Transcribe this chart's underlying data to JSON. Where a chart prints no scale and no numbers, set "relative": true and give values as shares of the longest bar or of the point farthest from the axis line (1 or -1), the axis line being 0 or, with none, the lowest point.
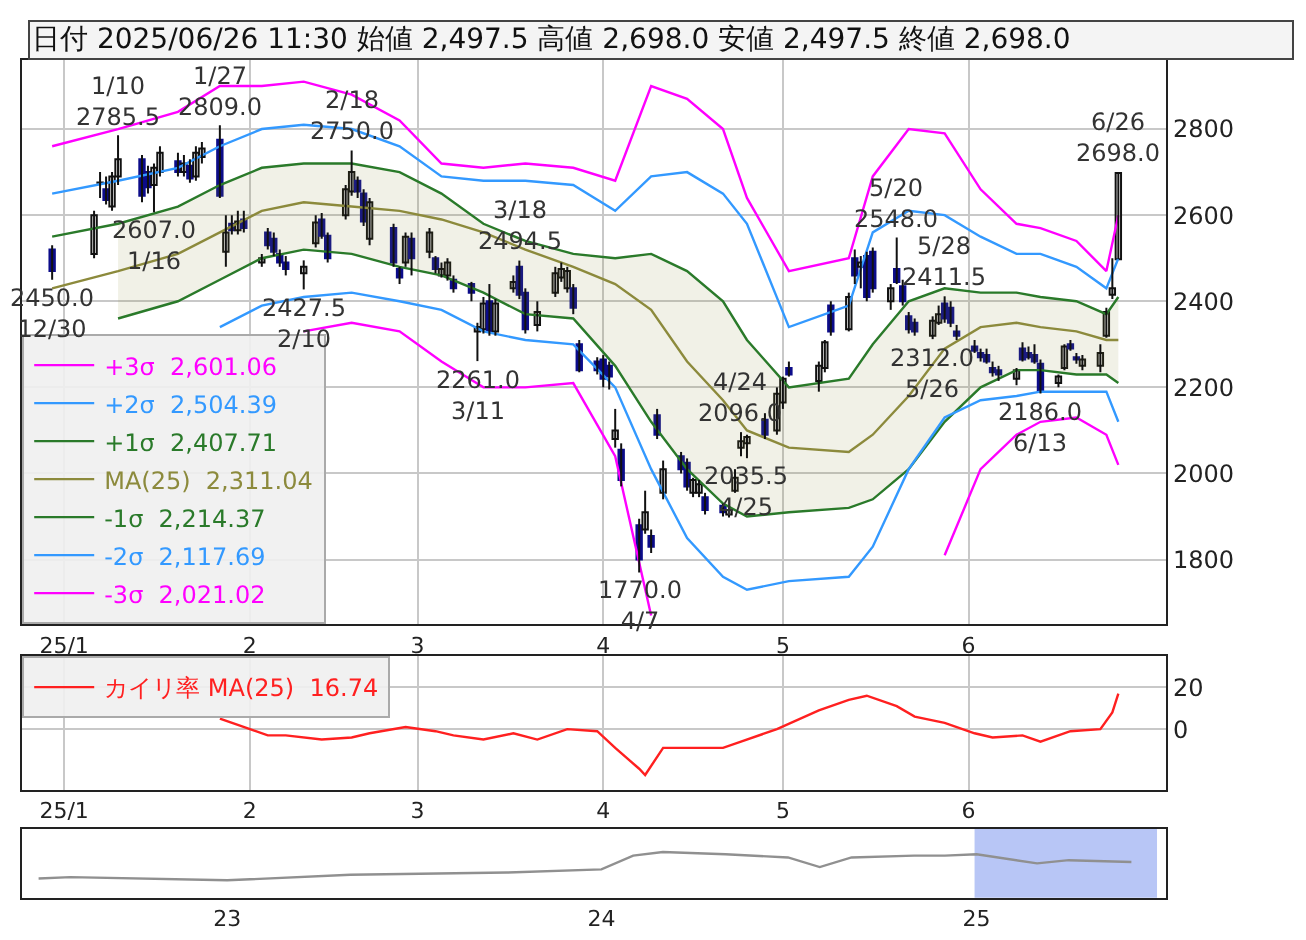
{
  "chart_data": [
    {
      "type": "candlestick",
      "title": "日付 2025/06/26 11:30 始値 2,497.5 高値 2,698.0 安値 2,497.5 終値 2,698.0",
      "colors": [
        "#0c0c8a",
        "#ffffff",
        "#ffffff",
        "#0c0c8a",
        "#ffffff",
        "#ffffff",
        "#0c0c8a",
        "#0c0c8a",
        "#ffffff",
        "#ffffff",
        "#0c0c8a",
        "#ffffff",
        "#0c0c8a",
        "#ffffff",
        "#ffffff",
        "#0c0c8a",
        "#ffffff",
        "#0c0c8a",
        "#ffffff",
        "#0c0c8a",
        "#ffffff",
        "#0c0c8a",
        "#0c0c8a",
        "#0c0c8a",
        "#0c0c8a",
        "#ffffff",
        "#ffffff",
        "#0c0c8a",
        "#0c0c8a",
        "#ffffff",
        "#ffffff",
        "#0c0c8a",
        "#0c0c8a",
        "#ffffff",
        "#0c0c8a",
        "#0c0c8a",
        "#ffffff",
        "#0c0c8a",
        "#ffffff",
        "#0c0c8a",
        "#ffffff",
        "#ffffff",
        "#0c0c8a",
        "#0c0c8a",
        "#ffffff",
        "#ffffff",
        "#0c0c8a",
        "#ffffff",
        "#ffffff",
        "#0c0c8a",
        "#0c0c8a",
        "#ffffff",
        "#ffffff",
        "#ffffff",
        "#ffffff",
        "#0c0c8a",
        "#0c0c8a",
        "#0c0c8a",
        "#0c0c8a",
        "#0c0c8a",
        "#ffffff",
        "#0c0c8a",
        "#0c0c8a",
        "#ffffff",
        "#0c0c8a",
        "#0c0c8a",
        "#ffffff",
        "#0c0c8a",
        "#0c0c8a",
        "#ffffff",
        "#ffffff",
        "#0c0c8a",
        "#0c0c8a",
        "#ffffff",
        "#ffffff",
        "#ffffff",
        "#ffffff",
        "#0c0c8a",
        "#ffffff",
        "#ffffff",
        "#0c0c8a",
        "#ffffff",
        "#ffffff",
        "#0c0c8a",
        "#ffffff",
        "#0c0c8a",
        "#ffffff",
        "#0c0c8a",
        "#0c0c8a",
        "#ffffff",
        "#0c0c8a",
        "#0c0c8a",
        "#0c0c8a",
        "#0c0c8a",
        "#ffffff",
        "#ffffff",
        "#0c0c8a",
        "#0c0c8a",
        "#0c0c8a",
        "#0c0c8a",
        "#0c0c8a",
        "#0c0c8a",
        "#0c0c8a",
        "#0c0c8a",
        "#ffffff",
        "#0c0c8a",
        "#0c0c8a",
        "#0c0c8a",
        "#0c0c8a",
        "#ffffff",
        "#ffffff",
        "#0c0c8a",
        "#0c0c8a",
        "#ffffff",
        "#ffffff",
        "#ffffff",
        "#ffffff",
        "#ffffff"
      ],
      "x": [
        "2024-12-30",
        "2025-01-06",
        "2025-01-07",
        "2025-01-08",
        "2025-01-09",
        "2025-01-10",
        "2025-01-14",
        "2025-01-15",
        "2025-01-16",
        "2025-01-17",
        "2025-01-20",
        "2025-01-21",
        "2025-01-22",
        "2025-01-23",
        "2025-01-24",
        "2025-01-27",
        "2025-01-28",
        "2025-01-29",
        "2025-01-30",
        "2025-01-31",
        "2025-02-03",
        "2025-02-04",
        "2025-02-05",
        "2025-02-06",
        "2025-02-07",
        "2025-02-10",
        "2025-02-12",
        "2025-02-13",
        "2025-02-14",
        "2025-02-17",
        "2025-02-18",
        "2025-02-19",
        "2025-02-20",
        "2025-02-21",
        "2025-02-25",
        "2025-02-26",
        "2025-02-27",
        "2025-02-28",
        "2025-03-03",
        "2025-03-04",
        "2025-03-05",
        "2025-03-06",
        "2025-03-07",
        "2025-03-10",
        "2025-03-11",
        "2025-03-12",
        "2025-03-13",
        "2025-03-14",
        "2025-03-17",
        "2025-03-18",
        "2025-03-19",
        "2025-03-21",
        "2025-03-24",
        "2025-03-25",
        "2025-03-26",
        "2025-03-27",
        "2025-03-28",
        "2025-03-31",
        "2025-04-01",
        "2025-04-02",
        "2025-04-03",
        "2025-04-04",
        "2025-04-07",
        "2025-04-08",
        "2025-04-09",
        "2025-04-10",
        "2025-04-11",
        "2025-04-14",
        "2025-04-15",
        "2025-04-16",
        "2025-04-17",
        "2025-04-18",
        "2025-04-21",
        "2025-04-22",
        "2025-04-23",
        "2025-04-24",
        "2025-04-25",
        "2025-04-28",
        "2025-04-30",
        "2025-05-01",
        "2025-05-02",
        "2025-05-07",
        "2025-05-08",
        "2025-05-09",
        "2025-05-12",
        "2025-05-13",
        "2025-05-14",
        "2025-05-15",
        "2025-05-16",
        "2025-05-19",
        "2025-05-20",
        "2025-05-21",
        "2025-05-22",
        "2025-05-23",
        "2025-05-26",
        "2025-05-27",
        "2025-05-28",
        "2025-05-29",
        "2025-05-30",
        "2025-06-02",
        "2025-06-03",
        "2025-06-04",
        "2025-06-05",
        "2025-06-06",
        "2025-06-09",
        "2025-06-10",
        "2025-06-11",
        "2025-06-12",
        "2025-06-13",
        "2025-06-16",
        "2025-06-17",
        "2025-06-18",
        "2025-06-19",
        "2025-06-20",
        "2025-06-23",
        "2025-06-24",
        "2025-06-25",
        "2025-06-26"
      ],
      "ohlc": [
        [
          2520,
          2530,
          2450,
          2470
        ],
        [
          2510,
          2610,
          2500,
          2600
        ],
        [
          2675,
          2700,
          2640,
          2676
        ],
        [
          2660,
          2690,
          2625,
          2635
        ],
        [
          2620,
          2700,
          2610,
          2690
        ],
        [
          2690,
          2785.5,
          2670,
          2730
        ],
        [
          2730,
          2740,
          2630,
          2645
        ],
        [
          2700,
          2715,
          2650,
          2665
        ],
        [
          2670,
          2720,
          2607,
          2710
        ],
        [
          2700,
          2760,
          2690,
          2745
        ],
        [
          2725,
          2745,
          2690,
          2700
        ],
        [
          2700,
          2740,
          2690,
          2720
        ],
        [
          2715,
          2730,
          2675,
          2685
        ],
        [
          2690,
          2760,
          2680,
          2745
        ],
        [
          2735,
          2770,
          2720,
          2755
        ],
        [
          2775,
          2809,
          2640,
          2645
        ],
        [
          2515,
          2600,
          2480,
          2560
        ],
        [
          2580,
          2600,
          2555,
          2565
        ],
        [
          2565,
          2610,
          2555,
          2585
        ],
        [
          2590,
          2610,
          2560,
          2570
        ],
        [
          2490,
          2510,
          2480,
          2500
        ],
        [
          2560,
          2570,
          2520,
          2530
        ],
        [
          2545,
          2560,
          2505,
          2515
        ],
        [
          2510,
          2520,
          2480,
          2490
        ],
        [
          2490,
          2505,
          2460,
          2475
        ],
        [
          2465,
          2495,
          2427.5,
          2480
        ],
        [
          2535,
          2600,
          2525,
          2583
        ],
        [
          2590,
          2605,
          2545,
          2552
        ],
        [
          2552,
          2560,
          2490,
          2500
        ],
        [
          2600,
          2670,
          2590,
          2660
        ],
        [
          2655,
          2750,
          2645,
          2700
        ],
        [
          2680,
          2690,
          2640,
          2655
        ],
        [
          2650,
          2660,
          2575,
          2585
        ],
        [
          2545,
          2640,
          2530,
          2630
        ],
        [
          2570,
          2580,
          2480,
          2490
        ],
        [
          2475,
          2480,
          2440,
          2455
        ],
        [
          2490,
          2560,
          2480,
          2550
        ],
        [
          2545,
          2560,
          2460,
          2500
        ],
        [
          2515,
          2570,
          2500,
          2560
        ],
        [
          2500,
          2505,
          2465,
          2475
        ],
        [
          2460,
          2490,
          2455,
          2475
        ],
        [
          2460,
          2500,
          2448,
          2490
        ],
        [
          2450,
          2460,
          2420,
          2430
        ],
        [
          2440,
          2445,
          2400,
          2420
        ],
        [
          2330,
          2350,
          2261,
          2340
        ],
        [
          2335,
          2410,
          2325,
          2395
        ],
        [
          2400,
          2440,
          2320,
          2330
        ],
        [
          2330,
          2405,
          2320,
          2395
        ],
        [
          2430,
          2460,
          2420,
          2445
        ],
        [
          2480,
          2494.5,
          2405,
          2415
        ],
        [
          2420,
          2430,
          2325,
          2335
        ],
        [
          2345,
          2400,
          2330,
          2375
        ],
        [
          2420,
          2480,
          2410,
          2465
        ],
        [
          2455,
          2490,
          2445,
          2475
        ],
        [
          2430,
          2480,
          2420,
          2470
        ],
        [
          2430,
          2440,
          2370,
          2385
        ],
        [
          2300,
          2310,
          2235,
          2240
        ],
        [
          2260,
          2270,
          2230,
          2240
        ],
        [
          2265,
          2275,
          2200,
          2220
        ],
        [
          2250,
          2260,
          2195,
          2225
        ],
        [
          2080,
          2150,
          2060,
          2100
        ],
        [
          2055,
          2070,
          1970,
          1985
        ],
        [
          1880,
          1895,
          1770,
          1800
        ],
        [
          1870,
          1960,
          1860,
          1910
        ],
        [
          1855,
          1870,
          1815,
          1830
        ],
        [
          2135,
          2150,
          2080,
          2090
        ],
        [
          1955,
          2030,
          1940,
          2010
        ],
        [
          2040,
          2050,
          2000,
          2010
        ],
        [
          2025,
          2035,
          1960,
          1970
        ],
        [
          1955,
          1990,
          1945,
          1985
        ],
        [
          1955,
          1985,
          1945,
          1975
        ],
        [
          1945,
          1955,
          1905,
          1915
        ],
        [
          1925,
          1930,
          1900,
          1910
        ],
        [
          1905,
          1920,
          1898,
          1915
        ],
        [
          1960,
          2010,
          1955,
          1990
        ],
        [
          2060,
          2096,
          2040,
          2075
        ],
        [
          2070,
          2090,
          2035.5,
          2085
        ],
        [
          2125,
          2140,
          2080,
          2090
        ],
        [
          2100,
          2200,
          2090,
          2185
        ],
        [
          2165,
          2225,
          2150,
          2220
        ],
        [
          2245,
          2260,
          2225,
          2230
        ],
        [
          2215,
          2260,
          2190,
          2250
        ],
        [
          2245,
          2310,
          2235,
          2305
        ],
        [
          2390,
          2400,
          2320,
          2330
        ],
        [
          2335,
          2420,
          2330,
          2410
        ],
        [
          2500,
          2520,
          2440,
          2460
        ],
        [
          2480,
          2505,
          2430,
          2490
        ],
        [
          2505,
          2515,
          2400,
          2410
        ],
        [
          2515,
          2525,
          2420,
          2430
        ],
        [
          2400,
          2440,
          2380,
          2430
        ],
        [
          2475,
          2548,
          2440,
          2445
        ],
        [
          2435,
          2450,
          2390,
          2400
        ],
        [
          2365,
          2375,
          2325,
          2335
        ],
        [
          2350,
          2360,
          2320,
          2330
        ],
        [
          2320,
          2365,
          2312,
          2355
        ],
        [
          2350,
          2390,
          2345,
          2370
        ],
        [
          2395,
          2411.5,
          2350,
          2360
        ],
        [
          2385,
          2400,
          2340,
          2350
        ],
        [
          2330,
          2345,
          2310,
          2320
        ],
        [
          2295,
          2310,
          2280,
          2285
        ],
        [
          2280,
          2290,
          2260,
          2270
        ],
        [
          2275,
          2290,
          2255,
          2260
        ],
        [
          2245,
          2260,
          2225,
          2235
        ],
        [
          2240,
          2250,
          2215,
          2230
        ],
        [
          2220,
          2245,
          2205,
          2240
        ],
        [
          2290,
          2305,
          2260,
          2265
        ],
        [
          2280,
          2295,
          2265,
          2270
        ],
        [
          2275,
          2300,
          2255,
          2260
        ],
        [
          2255,
          2265,
          2186,
          2190
        ],
        [
          2210,
          2230,
          2200,
          2225
        ],
        [
          2245,
          2300,
          2240,
          2295
        ],
        [
          2300,
          2310,
          2285,
          2290
        ],
        [
          2270,
          2280,
          2255,
          2265
        ],
        [
          2250,
          2275,
          2240,
          2265
        ],
        [
          2250,
          2300,
          2235,
          2280
        ],
        [
          2320,
          2385,
          2315,
          2375
        ],
        [
          2415,
          2500,
          2405,
          2430
        ],
        [
          2497.5,
          2698,
          2497.5,
          2698
        ]
      ],
      "series": [
        {
          "type": "line",
          "name": "+3σ  2,601.06",
          "color": "#ff00ff",
          "x": [
            "2024-12-30",
            "2025-01-10",
            "2025-01-20",
            "2025-01-27",
            "2025-02-03",
            "2025-02-10",
            "2025-02-18",
            "2025-02-26",
            "2025-03-05",
            "2025-03-12",
            "2025-03-19",
            "2025-03-27",
            "2025-04-03",
            "2025-04-09",
            "2025-04-15",
            "2025-04-21",
            "2025-04-25",
            "2025-05-02",
            "2025-05-12",
            "2025-05-16",
            "2025-05-22",
            "2025-05-28",
            "2025-06-03",
            "2025-06-09",
            "2025-06-13",
            "2025-06-19",
            "2025-06-24",
            "2025-06-26"
          ],
          "values": [
            2760,
            2800,
            2840,
            2900,
            2900,
            2910,
            2880,
            2820,
            2720,
            2710,
            2720,
            2710,
            2680,
            2900,
            2870,
            2800,
            2640,
            2470,
            2500,
            2690,
            2800,
            2790,
            2660,
            2580,
            2570,
            2540,
            2470,
            2600
          ]
        },
        {
          "type": "line",
          "name": "+2σ  2,504.39",
          "color": "#3399ff",
          "x": [
            "2024-12-30",
            "2025-01-10",
            "2025-01-20",
            "2025-01-27",
            "2025-02-03",
            "2025-02-10",
            "2025-02-18",
            "2025-02-26",
            "2025-03-05",
            "2025-03-12",
            "2025-03-19",
            "2025-03-27",
            "2025-04-03",
            "2025-04-09",
            "2025-04-15",
            "2025-04-21",
            "2025-04-25",
            "2025-05-02",
            "2025-05-12",
            "2025-05-16",
            "2025-05-22",
            "2025-05-28",
            "2025-06-03",
            "2025-06-09",
            "2025-06-13",
            "2025-06-19",
            "2025-06-24",
            "2025-06-26"
          ],
          "values": [
            2650,
            2680,
            2710,
            2760,
            2800,
            2810,
            2800,
            2760,
            2690,
            2680,
            2680,
            2670,
            2610,
            2690,
            2700,
            2650,
            2580,
            2340,
            2390,
            2560,
            2610,
            2600,
            2550,
            2510,
            2510,
            2480,
            2430,
            2500
          ]
        },
        {
          "type": "line",
          "name": "+1σ  2,407.71",
          "color": "#2a7a2a",
          "x": [
            "2024-12-30",
            "2025-01-10",
            "2025-01-20",
            "2025-01-27",
            "2025-02-03",
            "2025-02-10",
            "2025-02-18",
            "2025-02-26",
            "2025-03-05",
            "2025-03-12",
            "2025-03-19",
            "2025-03-27",
            "2025-04-03",
            "2025-04-09",
            "2025-04-15",
            "2025-04-21",
            "2025-04-25",
            "2025-05-02",
            "2025-05-12",
            "2025-05-16",
            "2025-05-22",
            "2025-05-28",
            "2025-06-03",
            "2025-06-09",
            "2025-06-13",
            "2025-06-19",
            "2025-06-24",
            "2025-06-26"
          ],
          "values": [
            2550,
            2580,
            2620,
            2670,
            2710,
            2720,
            2720,
            2700,
            2650,
            2580,
            2540,
            2510,
            2500,
            2510,
            2470,
            2400,
            2310,
            2200,
            2220,
            2300,
            2400,
            2430,
            2420,
            2420,
            2410,
            2400,
            2370,
            2410
          ]
        },
        {
          "type": "line",
          "name": "MA(25)  2,311.04",
          "color": "#8c8a3c",
          "x": [
            "2024-12-30",
            "2025-01-10",
            "2025-01-20",
            "2025-01-27",
            "2025-02-03",
            "2025-02-10",
            "2025-02-18",
            "2025-02-26",
            "2025-03-05",
            "2025-03-12",
            "2025-03-19",
            "2025-03-27",
            "2025-04-03",
            "2025-04-09",
            "2025-04-15",
            "2025-04-21",
            "2025-04-25",
            "2025-05-02",
            "2025-05-12",
            "2025-05-16",
            "2025-05-22",
            "2025-05-28",
            "2025-06-03",
            "2025-06-09",
            "2025-06-13",
            "2025-06-19",
            "2025-06-24",
            "2025-06-26"
          ],
          "values": [
            2430,
            2470,
            2510,
            2560,
            2610,
            2630,
            2620,
            2610,
            2590,
            2560,
            2520,
            2480,
            2440,
            2380,
            2260,
            2170,
            2100,
            2060,
            2050,
            2090,
            2180,
            2290,
            2340,
            2350,
            2340,
            2330,
            2310,
            2310
          ],
          "upper": [
            null,
            2580,
            2620,
            2670,
            2710,
            2720,
            2720,
            2700,
            2650,
            2580,
            2540,
            2510,
            2500,
            2510,
            2470,
            2400,
            2310,
            2200,
            2220,
            2300,
            2400,
            2430,
            2420,
            2420,
            2410,
            2400,
            2370,
            2410
          ],
          "lower": [
            null,
            2360,
            2400,
            2450,
            2500,
            2520,
            2510,
            2480,
            2460,
            2420,
            2370,
            2360,
            2250,
            2120,
            2010,
            1930,
            1900,
            1910,
            1920,
            1940,
            2010,
            2120,
            2200,
            2240,
            2240,
            2230,
            2230,
            2210
          ]
        },
        {
          "type": "line",
          "name": "-1σ  2,214.37",
          "color": "#2a7a2a",
          "x": [
            "2025-01-10",
            "2025-01-20",
            "2025-01-27",
            "2025-02-03",
            "2025-02-10",
            "2025-02-18",
            "2025-02-26",
            "2025-03-05",
            "2025-03-12",
            "2025-03-19",
            "2025-03-27",
            "2025-04-03",
            "2025-04-09",
            "2025-04-15",
            "2025-04-21",
            "2025-04-25",
            "2025-05-02",
            "2025-05-12",
            "2025-05-16",
            "2025-05-22",
            "2025-05-28",
            "2025-06-03",
            "2025-06-09",
            "2025-06-13",
            "2025-06-19",
            "2025-06-24",
            "2025-06-26"
          ],
          "values": [
            2360,
            2400,
            2450,
            2500,
            2520,
            2510,
            2480,
            2460,
            2420,
            2370,
            2360,
            2250,
            2120,
            2010,
            1930,
            1900,
            1910,
            1920,
            1940,
            2010,
            2120,
            2200,
            2240,
            2240,
            2230,
            2230,
            2210
          ]
        },
        {
          "type": "line",
          "name": "-2σ  2,117.69",
          "color": "#3399ff",
          "x": [
            "2025-01-27",
            "2025-02-03",
            "2025-02-10",
            "2025-02-18",
            "2025-02-26",
            "2025-03-05",
            "2025-03-12",
            "2025-03-19",
            "2025-03-27",
            "2025-04-03",
            "2025-04-09",
            "2025-04-15",
            "2025-04-21",
            "2025-04-25",
            "2025-05-02",
            "2025-05-12",
            "2025-05-16",
            "2025-05-22",
            "2025-05-28",
            "2025-06-03",
            "2025-06-09",
            "2025-06-13",
            "2025-06-19",
            "2025-06-24",
            "2025-06-26"
          ],
          "values": [
            2340,
            2390,
            2410,
            2420,
            2400,
            2380,
            2330,
            2310,
            2300,
            2200,
            2010,
            1850,
            1760,
            1730,
            1750,
            1760,
            1830,
            2010,
            2130,
            2170,
            2180,
            2190,
            2190,
            2190,
            2120
          ]
        },
        {
          "type": "line",
          "name": "-3σ  2,021.02",
          "color": "#ff00ff",
          "x": [
            "2025-02-10",
            "2025-02-18",
            "2025-02-26",
            "2025-03-05",
            "2025-03-12",
            "2025-03-19",
            "2025-03-27",
            "2025-04-03",
            "2025-04-09",
            "2025-04-15",
            "2025-04-21",
            "2025-04-25",
            "2025-05-02",
            "2025-05-12",
            "2025-05-16",
            "2025-05-22",
            "2025-05-28",
            "2025-06-03",
            "2025-06-09",
            "2025-06-13",
            "2025-06-19",
            "2025-06-24",
            "2025-06-26"
          ],
          "values": [
            2330,
            2350,
            2330,
            2260,
            2200,
            2200,
            2210,
            2040,
            1670,
            null,
            null,
            null,
            null,
            null,
            null,
            null,
            1810,
            2010,
            2090,
            2120,
            2130,
            2090,
            2020
          ]
        }
      ],
      "annotations": [
        {
          "text": "2450.0\n12/30",
          "x": "2024-12-30",
          "y": 2450
        },
        {
          "text": "1/10\n2785.5",
          "x": "2025-01-10",
          "y": 2785.5
        },
        {
          "text": "2607.0\n1/16",
          "x": "2025-01-16",
          "y": 2607
        },
        {
          "text": "1/27\n2809.0",
          "x": "2025-01-27",
          "y": 2809
        },
        {
          "text": "2427.5\n2/10",
          "x": "2025-02-10",
          "y": 2427.5
        },
        {
          "text": "2/18\n2750.0",
          "x": "2025-02-18",
          "y": 2750
        },
        {
          "text": "2261.0\n3/11",
          "x": "2025-03-11",
          "y": 2261
        },
        {
          "text": "3/18\n2494.5",
          "x": "2025-03-18",
          "y": 2494.5
        },
        {
          "text": "1770.0\n4/7",
          "x": "2025-04-07",
          "y": 1770
        },
        {
          "text": "4/24\n2096.0",
          "x": "2025-04-24",
          "y": 2096
        },
        {
          "text": "2035.5\n4/25",
          "x": "2025-04-25",
          "y": 2035.5
        },
        {
          "text": "5/20\n2548.0",
          "x": "2025-05-20",
          "y": 2548
        },
        {
          "text": "5/28\n2411.5",
          "x": "2025-05-28",
          "y": 2411.5
        },
        {
          "text": "2312.0\n5/26",
          "x": "2025-05-26",
          "y": 2312
        },
        {
          "text": "2186.0\n6/13",
          "x": "2025-06-13",
          "y": 2186
        },
        {
          "text": "6/26\n2698.0",
          "x": "2025-06-26",
          "y": 2698
        }
      ],
      "xlim": [
        "2024-12-25",
        "2025-07-04"
      ],
      "xticks": [
        {
          "value": "2025-01-01",
          "label": "25/1"
        },
        {
          "value": "2025-02-01",
          "label": "2"
        },
        {
          "value": "2025-03-01",
          "label": "3"
        },
        {
          "value": "2025-04-01",
          "label": "4"
        },
        {
          "value": "2025-05-01",
          "label": "5"
        },
        {
          "value": "2025-06-01",
          "label": "6"
        }
      ],
      "ylim": [
        1650,
        2960
      ],
      "yticks": [
        1800,
        2000,
        2200,
        2400,
        2600,
        2800
      ],
      "grid": true,
      "legend": "bottom left"
    },
    {
      "type": "line",
      "series": [
        {
          "name": "カイリ率 MA(25)  16.74",
          "color": "#ff2020",
          "x": [
            "2025-01-27",
            "2025-01-30",
            "2025-02-04",
            "2025-02-07",
            "2025-02-13",
            "2025-02-18",
            "2025-02-21",
            "2025-02-27",
            "2025-03-04",
            "2025-03-07",
            "2025-03-12",
            "2025-03-17",
            "2025-03-21",
            "2025-03-26",
            "2025-03-31",
            "2025-04-03",
            "2025-04-07",
            "2025-04-08",
            "2025-04-11",
            "2025-04-16",
            "2025-04-21",
            "2025-04-24",
            "2025-04-30",
            "2025-05-07",
            "2025-05-12",
            "2025-05-15",
            "2025-05-20",
            "2025-05-23",
            "2025-05-28",
            "2025-06-02",
            "2025-06-05",
            "2025-06-10",
            "2025-06-13",
            "2025-06-18",
            "2025-06-23",
            "2025-06-25",
            "2025-06-26"
          ],
          "values": [
            5,
            2,
            -3,
            -3,
            -5,
            -4,
            -2,
            1,
            -1,
            -3,
            -5,
            -2,
            -5,
            0,
            -1,
            -9,
            -19,
            -22,
            -9,
            -9,
            -9,
            -6,
            0,
            9,
            14,
            16,
            11,
            6,
            3,
            -2,
            -4,
            -3,
            -6,
            -1,
            0,
            8,
            17
          ]
        }
      ],
      "xlim": [
        "2024-12-25",
        "2025-07-04"
      ],
      "xticks": [
        {
          "value": "2025-01-01",
          "label": "25/1"
        },
        {
          "value": "2025-02-01",
          "label": "2"
        },
        {
          "value": "2025-03-01",
          "label": "3"
        },
        {
          "value": "2025-04-01",
          "label": "4"
        },
        {
          "value": "2025-05-01",
          "label": "5"
        },
        {
          "value": "2025-06-01",
          "label": "6"
        }
      ],
      "ylim": [
        -29,
        35
      ],
      "yticks": [
        0,
        20
      ],
      "grid": true,
      "legend": "top left"
    },
    {
      "type": "line",
      "relative": true,
      "color": "#909090",
      "x": [
        "2022-07",
        "2022-08",
        "2023-01",
        "2023-05",
        "2023-10",
        "2024-01",
        "2024-02",
        "2024-03",
        "2024-05",
        "2024-07",
        "2024-08",
        "2024-09",
        "2024-11",
        "2024-12",
        "2025-01",
        "2025-03",
        "2025-04",
        "2025-06"
      ],
      "values": [
        0.42,
        0.45,
        0.38,
        0.5,
        0.55,
        0.62,
        0.92,
        1,
        0.95,
        0.88,
        0.67,
        0.88,
        0.92,
        0.92,
        0.95,
        0.75,
        0.82,
        0.78
      ],
      "xlim": [
        "2022-06-15",
        "2025-07-05"
      ],
      "xticks": [
        {
          "value": "2023-01-01",
          "label": "23"
        },
        {
          "value": "2024-01-01",
          "label": "24"
        },
        {
          "value": "2025-01-01",
          "label": "25"
        }
      ],
      "bands": [
        {
          "axis": "x",
          "from": "2024-12-30",
          "to": "2025-06-26",
          "color": "#b8c6f6"
        }
      ]
    }
  ]
}
